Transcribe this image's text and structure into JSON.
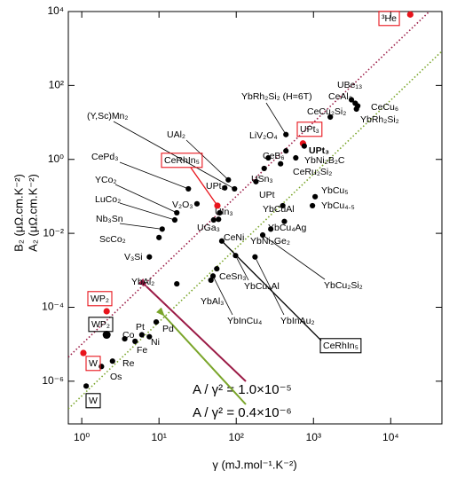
{
  "chart_data": {
    "type": "scatter",
    "xlabel": "γ (mJ.mol⁻¹.K⁻²)",
    "ylabels": [
      {
        "text": "B₂ (μΩ.cm.K⁻²)",
        "color": "#e8141c"
      },
      {
        "text": "A₂ (μΩ.cm.K⁻²)",
        "color": "#000000"
      }
    ],
    "xscale": "log",
    "yscale": "log",
    "xlim": [
      0.67,
      46000
    ],
    "ylim": [
      7e-08,
      10000
    ],
    "xticks": [
      {
        "value": 1,
        "label": "10⁰"
      },
      {
        "value": 10,
        "label": "10¹"
      },
      {
        "value": 100,
        "label": "10²"
      },
      {
        "value": 1000,
        "label": "10³"
      },
      {
        "value": 10000,
        "label": "10⁴"
      }
    ],
    "yticks": [
      {
        "value": 1e-06,
        "label": "10⁻⁶"
      },
      {
        "value": 0.0001,
        "label": "10⁻⁴"
      },
      {
        "value": 0.01,
        "label": "10⁻²"
      },
      {
        "value": 1,
        "label": "10⁰"
      },
      {
        "value": 100,
        "label": "10²"
      },
      {
        "value": 10000,
        "label": "10⁴"
      }
    ],
    "lines": [
      {
        "coefficient": 1e-05,
        "color": "#9b1b46",
        "label": "A / γ² = 1.0×10⁻⁵"
      },
      {
        "coefficient": 4e-07,
        "color": "#7aa52a",
        "label": "A / γ² = 0.4×10⁻⁶"
      }
    ],
    "points": [
      {
        "label": "³He",
        "x": 17900,
        "y": 8300,
        "color": "#e8141c",
        "boxed": true
      },
      {
        "label": "UBe₁₃",
        "x": 3100,
        "y": 41,
        "color": "#000000"
      },
      {
        "label": "CeAl₃",
        "x": 3470,
        "y": 33,
        "color": "#000000"
      },
      {
        "label": "CeCu₆",
        "x": 3740,
        "y": 28,
        "color": "#000000"
      },
      {
        "label": "YbRh₂Si₂",
        "x": 3600,
        "y": 23,
        "color": "#000000"
      },
      {
        "label": "CeCu₂Si₂",
        "x": 1650,
        "y": 14,
        "color": "#000000"
      },
      {
        "label": "YbRh₂Si₂ (H=6T)",
        "x": 440,
        "y": 4.7,
        "color": "#000000"
      },
      {
        "label": "UPt₃",
        "x": 730,
        "y": 2.7,
        "color": "#e8141c",
        "boxed": true
      },
      {
        "label": "UPt₃",
        "x": 760,
        "y": 2.3,
        "color": "#000000",
        "bold": true
      },
      {
        "label": "LiV₂O₄",
        "x": 440,
        "y": 1.7,
        "color": "#000000"
      },
      {
        "label": "CeB₆",
        "x": 260,
        "y": 1.1,
        "color": "#000000"
      },
      {
        "label": "YbNi₂B₂C",
        "x": 590,
        "y": 1.1,
        "color": "#000000"
      },
      {
        "label": "CeRu₂Si₂",
        "x": 375,
        "y": 0.76,
        "color": "#000000"
      },
      {
        "label": "USn₃",
        "x": 230,
        "y": 0.57,
        "color": "#000000"
      },
      {
        "label": "UPt",
        "x": 180,
        "y": 0.25,
        "color": "#000000"
      },
      {
        "label": "UPt₂",
        "x": 71,
        "y": 0.17,
        "color": "#000000"
      },
      {
        "label": "UAl₂",
        "x": 79,
        "y": 0.28,
        "color": "#000000"
      },
      {
        "label": "(Y,Sc)Mn₂",
        "x": 95,
        "y": 0.16,
        "color": "#000000"
      },
      {
        "label": "CeRhIn₅",
        "x": 57,
        "y": 0.056,
        "color": "#e8141c",
        "boxed": true
      },
      {
        "label": "CePd₃",
        "x": 24,
        "y": 0.16,
        "color": "#000000"
      },
      {
        "label": "V₂O₃",
        "x": 31,
        "y": 0.063,
        "color": "#000000"
      },
      {
        "label": "UIn₃",
        "x": 61,
        "y": 0.036,
        "color": "#000000"
      },
      {
        "label": "UGa₃",
        "x": 51,
        "y": 0.023,
        "color": "#000000"
      },
      {
        "label": "CeNi",
        "x": 59,
        "y": 0.024,
        "color": "#000000"
      },
      {
        "label": "YCo₂",
        "x": 17,
        "y": 0.036,
        "color": "#000000"
      },
      {
        "label": "LuCo₂",
        "x": 16,
        "y": 0.023,
        "color": "#000000"
      },
      {
        "label": "Nb₃Sn",
        "x": 11,
        "y": 0.013,
        "color": "#000000"
      },
      {
        "label": "ScCo₂",
        "x": 10,
        "y": 0.0077,
        "color": "#000000"
      },
      {
        "label": "V₃Si",
        "x": 7.5,
        "y": 0.0023,
        "color": "#000000"
      },
      {
        "label": "YbCu₅",
        "x": 1050,
        "y": 0.098,
        "color": "#000000"
      },
      {
        "label": "YbCu₄.₅",
        "x": 970,
        "y": 0.056,
        "color": "#000000"
      },
      {
        "label": "YbCuAl",
        "x": 400,
        "y": 0.056,
        "color": "#000000"
      },
      {
        "label": "YbCu₄Ag",
        "x": 420,
        "y": 0.021,
        "color": "#000000"
      },
      {
        "label": "YbNi₂Ge₂",
        "x": 280,
        "y": 0.013,
        "color": "#000000"
      },
      {
        "label": "YbCu₂Si₂",
        "x": 220,
        "y": 0.009,
        "color": "#000000"
      },
      {
        "label": "YbCu₄Al",
        "x": 98,
        "y": 0.0025,
        "color": "#000000"
      },
      {
        "label": "CeSn₃",
        "x": 56,
        "y": 0.0011,
        "color": "#000000"
      },
      {
        "label": "YbAl₃",
        "x": 47,
        "y": 0.00054,
        "color": "#000000"
      },
      {
        "label": "YbInCu₄",
        "x": 50,
        "y": 0.0007,
        "color": "#000000"
      },
      {
        "label": "YbInAu₂",
        "x": 175,
        "y": 0.0023,
        "color": "#000000"
      },
      {
        "label": "YbAl₂",
        "x": 17,
        "y": 0.00043,
        "color": "#000000"
      },
      {
        "label": "CeRhIn₅",
        "x": 65,
        "y": 0.0062,
        "color": "#000000",
        "boxed": true
      },
      {
        "label": "WP₂",
        "x": 2.1,
        "y": 7.8e-05,
        "color": "#e8141c",
        "boxed": true
      },
      {
        "label": "WP₂",
        "x": 2.1,
        "y": 1.8e-05,
        "color": "#000000",
        "boxed": true
      },
      {
        "label": "Co",
        "x": 3.6,
        "y": 1.4e-05,
        "color": "#000000"
      },
      {
        "label": "Pt",
        "x": 6.0,
        "y": 1.8e-05,
        "color": "#000000"
      },
      {
        "label": "Fe",
        "x": 4.9,
        "y": 1.2e-05,
        "color": "#000000"
      },
      {
        "label": "Ni",
        "x": 7.5,
        "y": 1.6e-05,
        "color": "#000000"
      },
      {
        "label": "Pd",
        "x": 9.2,
        "y": 4e-05,
        "color": "#000000"
      },
      {
        "label": "Re",
        "x": 2.5,
        "y": 3.5e-06,
        "color": "#000000"
      },
      {
        "label": "Os",
        "x": 1.8,
        "y": 2.5e-06,
        "color": "#000000"
      },
      {
        "label": "W",
        "x": 1.05,
        "y": 5.8e-06,
        "color": "#e8141c",
        "boxed": true
      },
      {
        "label": "W",
        "x": 1.14,
        "y": 7.4e-07,
        "color": "#000000",
        "boxed": true
      }
    ]
  }
}
